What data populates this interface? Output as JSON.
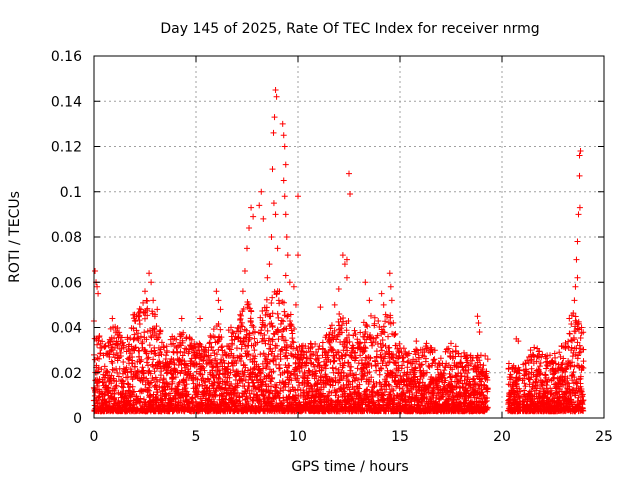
{
  "chart_data": {
    "type": "scatter",
    "title": "Day 145 of 2025, Rate Of TEC Index for receiver nrmg",
    "xlabel": "GPS time / hours",
    "ylabel": "ROTI / TECUs",
    "xlim": [
      0,
      25
    ],
    "ylim": [
      0,
      0.16
    ],
    "xticks": [
      0,
      5,
      10,
      15,
      20,
      25
    ],
    "xtick_labels": [
      "0",
      "5",
      "10",
      "15",
      "20",
      "25"
    ],
    "yticks": [
      0,
      0.02,
      0.04,
      0.06,
      0.08,
      0.1,
      0.12,
      0.14,
      0.16
    ],
    "ytick_labels": [
      "0",
      "0.02",
      "0.04",
      "0.06",
      "0.08",
      "0.1",
      "0.12",
      "0.14",
      "0.16"
    ],
    "grid": true,
    "marker": "+",
    "marker_color": "#ff0000",
    "data_gaps_hours": [
      [
        19.3,
        20.3
      ],
      [
        20.9,
        21.0
      ]
    ],
    "envelope": [
      {
        "x": 0.0,
        "y": 0.04
      },
      {
        "x": 0.5,
        "y": 0.03
      },
      {
        "x": 1.0,
        "y": 0.04
      },
      {
        "x": 1.5,
        "y": 0.03
      },
      {
        "x": 2.0,
        "y": 0.045
      },
      {
        "x": 2.5,
        "y": 0.05
      },
      {
        "x": 3.0,
        "y": 0.045
      },
      {
        "x": 3.5,
        "y": 0.03
      },
      {
        "x": 4.0,
        "y": 0.035
      },
      {
        "x": 4.5,
        "y": 0.035
      },
      {
        "x": 5.0,
        "y": 0.03
      },
      {
        "x": 5.5,
        "y": 0.03
      },
      {
        "x": 6.0,
        "y": 0.04
      },
      {
        "x": 6.5,
        "y": 0.035
      },
      {
        "x": 7.0,
        "y": 0.04
      },
      {
        "x": 7.5,
        "y": 0.05
      },
      {
        "x": 8.0,
        "y": 0.04
      },
      {
        "x": 8.5,
        "y": 0.05
      },
      {
        "x": 9.0,
        "y": 0.055
      },
      {
        "x": 9.5,
        "y": 0.05
      },
      {
        "x": 10.0,
        "y": 0.03
      },
      {
        "x": 10.5,
        "y": 0.03
      },
      {
        "x": 11.0,
        "y": 0.03
      },
      {
        "x": 11.5,
        "y": 0.035
      },
      {
        "x": 12.0,
        "y": 0.045
      },
      {
        "x": 12.5,
        "y": 0.04
      },
      {
        "x": 13.0,
        "y": 0.035
      },
      {
        "x": 13.5,
        "y": 0.045
      },
      {
        "x": 14.0,
        "y": 0.04
      },
      {
        "x": 14.5,
        "y": 0.045
      },
      {
        "x": 15.0,
        "y": 0.03
      },
      {
        "x": 15.5,
        "y": 0.025
      },
      {
        "x": 16.0,
        "y": 0.03
      },
      {
        "x": 16.5,
        "y": 0.03
      },
      {
        "x": 17.0,
        "y": 0.025
      },
      {
        "x": 17.5,
        "y": 0.03
      },
      {
        "x": 18.0,
        "y": 0.03
      },
      {
        "x": 18.5,
        "y": 0.025
      },
      {
        "x": 19.0,
        "y": 0.025
      },
      {
        "x": 21.0,
        "y": 0.02
      },
      {
        "x": 21.5,
        "y": 0.03
      },
      {
        "x": 22.0,
        "y": 0.025
      },
      {
        "x": 22.5,
        "y": 0.025
      },
      {
        "x": 23.0,
        "y": 0.03
      },
      {
        "x": 23.5,
        "y": 0.045
      },
      {
        "x": 24.0,
        "y": 0.035
      }
    ],
    "spikes": [
      {
        "x": 0.05,
        "y": 0.065
      },
      {
        "x": 0.1,
        "y": 0.06
      },
      {
        "x": 0.15,
        "y": 0.058
      },
      {
        "x": 0.2,
        "y": 0.055
      },
      {
        "x": 0.9,
        "y": 0.044
      },
      {
        "x": 2.3,
        "y": 0.048
      },
      {
        "x": 2.7,
        "y": 0.064
      },
      {
        "x": 2.8,
        "y": 0.06
      },
      {
        "x": 2.5,
        "y": 0.056
      },
      {
        "x": 2.9,
        "y": 0.052
      },
      {
        "x": 3.1,
        "y": 0.048
      },
      {
        "x": 4.3,
        "y": 0.044
      },
      {
        "x": 5.2,
        "y": 0.044
      },
      {
        "x": 6.0,
        "y": 0.056
      },
      {
        "x": 6.1,
        "y": 0.052
      },
      {
        "x": 6.2,
        "y": 0.048
      },
      {
        "x": 7.3,
        "y": 0.056
      },
      {
        "x": 7.5,
        "y": 0.075
      },
      {
        "x": 7.6,
        "y": 0.084
      },
      {
        "x": 7.7,
        "y": 0.093
      },
      {
        "x": 7.8,
        "y": 0.089
      },
      {
        "x": 7.4,
        "y": 0.065
      },
      {
        "x": 8.1,
        "y": 0.094
      },
      {
        "x": 8.2,
        "y": 0.1
      },
      {
        "x": 8.3,
        "y": 0.088
      },
      {
        "x": 8.5,
        "y": 0.062
      },
      {
        "x": 8.6,
        "y": 0.068
      },
      {
        "x": 8.7,
        "y": 0.08
      },
      {
        "x": 8.75,
        "y": 0.11
      },
      {
        "x": 8.8,
        "y": 0.126
      },
      {
        "x": 8.85,
        "y": 0.133
      },
      {
        "x": 8.9,
        "y": 0.145
      },
      {
        "x": 8.95,
        "y": 0.142
      },
      {
        "x": 8.82,
        "y": 0.095
      },
      {
        "x": 8.9,
        "y": 0.09
      },
      {
        "x": 9.0,
        "y": 0.075
      },
      {
        "x": 9.25,
        "y": 0.13
      },
      {
        "x": 9.3,
        "y": 0.125
      },
      {
        "x": 9.35,
        "y": 0.12
      },
      {
        "x": 9.4,
        "y": 0.112
      },
      {
        "x": 9.3,
        "y": 0.105
      },
      {
        "x": 9.35,
        "y": 0.098
      },
      {
        "x": 9.4,
        "y": 0.09
      },
      {
        "x": 9.45,
        "y": 0.08
      },
      {
        "x": 9.5,
        "y": 0.072
      },
      {
        "x": 9.4,
        "y": 0.063
      },
      {
        "x": 9.6,
        "y": 0.06
      },
      {
        "x": 10.0,
        "y": 0.098
      },
      {
        "x": 10.0,
        "y": 0.072
      },
      {
        "x": 9.8,
        "y": 0.058
      },
      {
        "x": 9.9,
        "y": 0.05
      },
      {
        "x": 11.1,
        "y": 0.049
      },
      {
        "x": 11.8,
        "y": 0.05
      },
      {
        "x": 12.0,
        "y": 0.057
      },
      {
        "x": 12.2,
        "y": 0.072
      },
      {
        "x": 12.3,
        "y": 0.068
      },
      {
        "x": 12.4,
        "y": 0.07
      },
      {
        "x": 12.5,
        "y": 0.108
      },
      {
        "x": 12.55,
        "y": 0.099
      },
      {
        "x": 12.4,
        "y": 0.062
      },
      {
        "x": 13.3,
        "y": 0.06
      },
      {
        "x": 13.5,
        "y": 0.052
      },
      {
        "x": 14.1,
        "y": 0.055
      },
      {
        "x": 14.2,
        "y": 0.05
      },
      {
        "x": 14.5,
        "y": 0.064
      },
      {
        "x": 14.55,
        "y": 0.058
      },
      {
        "x": 14.6,
        "y": 0.052
      },
      {
        "x": 15.8,
        "y": 0.034
      },
      {
        "x": 16.3,
        "y": 0.033
      },
      {
        "x": 17.5,
        "y": 0.033
      },
      {
        "x": 18.8,
        "y": 0.045
      },
      {
        "x": 18.85,
        "y": 0.042
      },
      {
        "x": 18.9,
        "y": 0.038
      },
      {
        "x": 20.7,
        "y": 0.035
      },
      {
        "x": 20.8,
        "y": 0.034
      },
      {
        "x": 21.4,
        "y": 0.03
      },
      {
        "x": 23.3,
        "y": 0.044
      },
      {
        "x": 23.55,
        "y": 0.052
      },
      {
        "x": 23.6,
        "y": 0.058
      },
      {
        "x": 23.65,
        "y": 0.07
      },
      {
        "x": 23.7,
        "y": 0.078
      },
      {
        "x": 23.75,
        "y": 0.09
      },
      {
        "x": 23.8,
        "y": 0.107
      },
      {
        "x": 23.8,
        "y": 0.116
      },
      {
        "x": 23.85,
        "y": 0.118
      },
      {
        "x": 23.82,
        "y": 0.093
      },
      {
        "x": 23.7,
        "y": 0.062
      },
      {
        "x": 23.6,
        "y": 0.043
      },
      {
        "x": 23.9,
        "y": 0.04
      }
    ]
  }
}
